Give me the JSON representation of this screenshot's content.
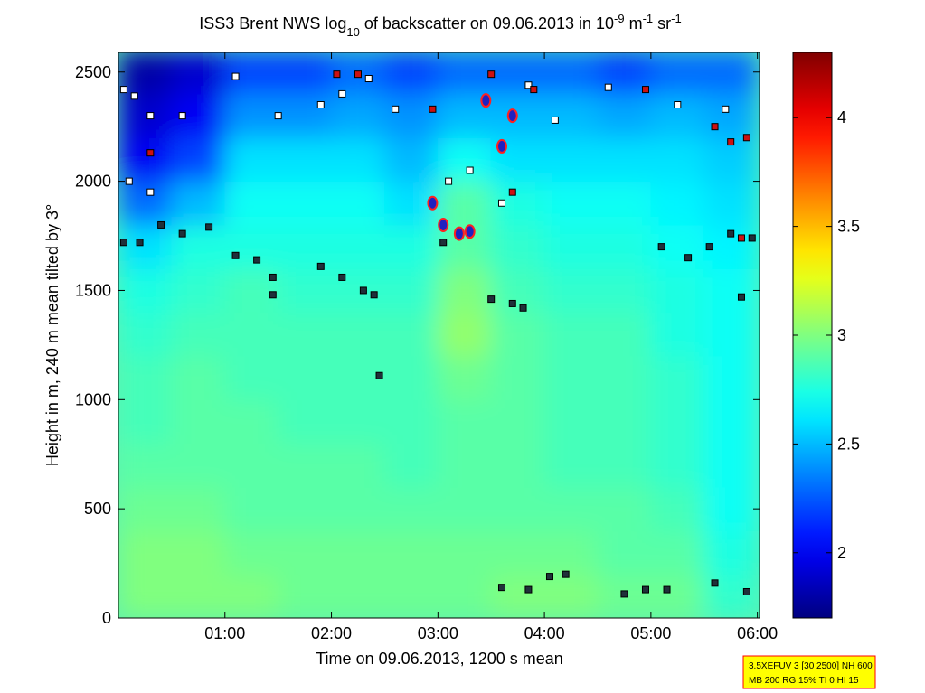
{
  "chart_data": {
    "type": "heatmap",
    "title": [
      "ISS3 Brent NWS log",
      "10",
      " of backscatter on 09.06.2013 in 10",
      "-9",
      " m",
      "-1",
      " sr",
      "-1"
    ],
    "xlabel": "Time on 09.06.2013, 1200 s mean",
    "ylabel": "Height in m, 240 m mean tilted by 3°",
    "annotation": [
      "3.5XEFUV 3 [30 2500] NH 600",
      "MB 200 RG 15% TI 0 HI 15"
    ],
    "xlim": [
      0,
      6.02
    ],
    "ylim": [
      0,
      2590
    ],
    "xticks": [
      {
        "value": 1,
        "label": "01:00"
      },
      {
        "value": 2,
        "label": "02:00"
      },
      {
        "value": 3,
        "label": "03:00"
      },
      {
        "value": 4,
        "label": "04:00"
      },
      {
        "value": 5,
        "label": "05:00"
      },
      {
        "value": 6,
        "label": "06:00"
      }
    ],
    "yticks": [
      0,
      500,
      1000,
      1500,
      2000,
      2500
    ],
    "clim": [
      1.7,
      4.3
    ],
    "cticks": [
      2,
      2.5,
      3,
      3.5,
      4
    ],
    "colormap": "jet",
    "x": [
      0.25,
      0.75,
      1.25,
      1.75,
      2.25,
      2.75,
      3.25,
      3.75,
      4.25,
      4.75,
      5.25,
      5.75
    ],
    "y": [
      100,
      300,
      500,
      700,
      900,
      1100,
      1300,
      1500,
      1700,
      1900,
      2100,
      2300,
      2500
    ],
    "z": [
      [
        3.0,
        3.0,
        3.0,
        2.95,
        2.95,
        2.95,
        2.95,
        3.0,
        3.0,
        2.95,
        2.95,
        2.8
      ],
      [
        3.0,
        3.0,
        2.95,
        2.95,
        2.95,
        2.95,
        2.95,
        2.95,
        2.95,
        2.9,
        2.9,
        2.75
      ],
      [
        2.95,
        2.95,
        2.9,
        2.9,
        2.9,
        2.9,
        2.9,
        2.9,
        2.9,
        2.9,
        2.85,
        2.7
      ],
      [
        2.9,
        2.9,
        2.9,
        2.9,
        2.9,
        2.85,
        2.9,
        2.9,
        2.85,
        2.85,
        2.8,
        2.7
      ],
      [
        2.85,
        2.9,
        2.9,
        2.85,
        2.85,
        2.85,
        2.9,
        2.9,
        2.85,
        2.85,
        2.8,
        2.7
      ],
      [
        2.85,
        2.9,
        2.85,
        2.85,
        2.85,
        2.85,
        2.95,
        2.9,
        2.85,
        2.85,
        2.8,
        2.7
      ],
      [
        2.8,
        2.85,
        2.85,
        2.85,
        2.85,
        2.85,
        3.05,
        2.9,
        2.85,
        2.85,
        2.75,
        2.7
      ],
      [
        2.75,
        2.8,
        2.85,
        2.8,
        2.8,
        2.8,
        3.0,
        2.85,
        2.8,
        2.8,
        2.75,
        2.7
      ],
      [
        2.6,
        2.75,
        2.75,
        2.75,
        2.75,
        2.75,
        2.9,
        2.8,
        2.75,
        2.75,
        2.7,
        2.65
      ],
      [
        2.3,
        2.5,
        2.7,
        2.7,
        2.7,
        2.6,
        2.9,
        2.75,
        2.7,
        2.7,
        2.65,
        2.6
      ],
      [
        2.0,
        2.2,
        2.6,
        2.6,
        2.6,
        2.5,
        2.7,
        2.6,
        2.6,
        2.6,
        2.6,
        2.55
      ],
      [
        1.9,
        2.0,
        2.4,
        2.4,
        2.45,
        2.4,
        2.5,
        2.5,
        2.5,
        2.45,
        2.5,
        2.45
      ],
      [
        1.8,
        1.9,
        2.2,
        2.2,
        2.3,
        2.2,
        2.3,
        2.3,
        2.3,
        2.2,
        2.3,
        2.3
      ]
    ],
    "series": [
      {
        "color": "#ffffff",
        "marker": "square",
        "edgecolor": "#000000",
        "x": [
          0.05,
          0.15,
          0.3,
          0.6,
          1.1,
          1.5,
          1.9,
          2.1,
          2.35,
          2.6,
          3.1,
          3.3,
          3.85,
          4.1,
          4.6,
          5.25,
          5.7,
          3.6,
          0.1,
          0.3
        ],
        "values": [
          2420,
          2390,
          2300,
          2300,
          2480,
          2300,
          2350,
          2400,
          2470,
          2330,
          2000,
          2050,
          2440,
          2280,
          2430,
          2350,
          2330,
          1900,
          2000,
          1950
        ]
      },
      {
        "color": "#20303a",
        "marker": "square",
        "edgecolor": "#000000",
        "x": [
          0.4,
          0.6,
          0.85,
          1.1,
          1.3,
          1.45,
          1.45,
          1.9,
          2.1,
          2.3,
          2.4,
          2.45,
          3.5,
          3.7,
          3.8,
          3.6,
          3.85,
          4.05,
          4.2,
          4.75,
          4.95,
          5.15,
          5.6,
          5.9,
          5.1,
          5.35,
          5.55,
          5.75,
          5.95,
          5.85,
          0.05,
          0.2,
          3.05
        ],
        "values": [
          1800,
          1760,
          1790,
          1660,
          1640,
          1560,
          1480,
          1610,
          1560,
          1500,
          1480,
          1110,
          1460,
          1440,
          1420,
          140,
          130,
          190,
          200,
          110,
          130,
          130,
          160,
          120,
          1700,
          1650,
          1700,
          1760,
          1740,
          1470,
          1720,
          1720,
          1720
        ]
      },
      {
        "color": "#cc1111",
        "marker": "square",
        "edgecolor": "#000000",
        "x": [
          2.05,
          2.25,
          2.95,
          3.5,
          3.9,
          4.95,
          5.75,
          5.9,
          5.6,
          0.3,
          3.7,
          5.85
        ],
        "values": [
          2490,
          2490,
          2330,
          2490,
          2420,
          2420,
          2180,
          2200,
          2250,
          2130,
          1950,
          1740
        ]
      },
      {
        "color": "#2020c0",
        "marker": "circle",
        "edgecolor": "#ff2020",
        "x": [
          3.45,
          3.6,
          3.7,
          2.95,
          3.05,
          3.2,
          3.3
        ],
        "values": [
          2370,
          2160,
          2300,
          1900,
          1800,
          1760,
          1770
        ]
      }
    ]
  }
}
